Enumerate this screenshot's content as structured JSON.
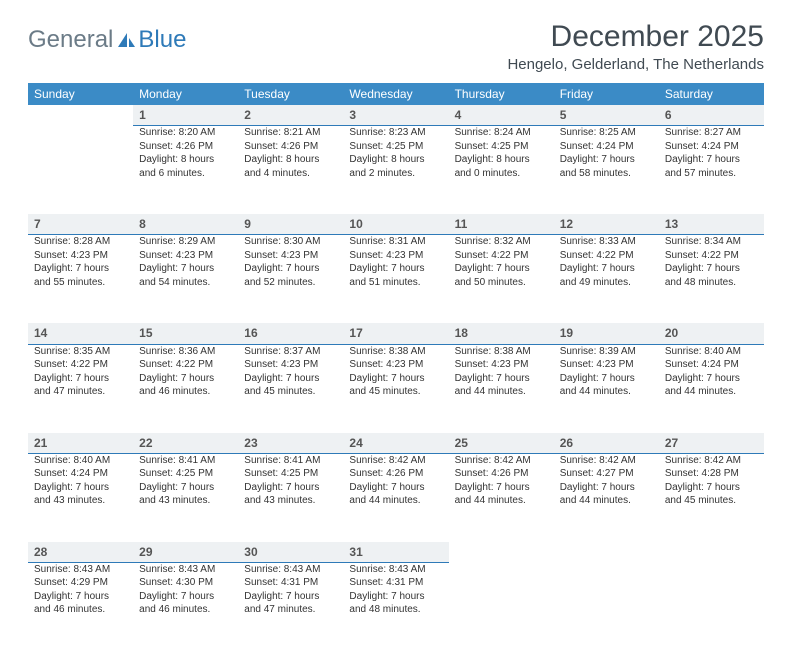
{
  "logo": {
    "general": "General",
    "blue": "Blue"
  },
  "title": "December 2025",
  "location": "Hengelo, Gelderland, The Netherlands",
  "colors": {
    "header_bg": "#3b8bc6",
    "header_text": "#ffffff",
    "daynum_bg": "#eef1f3",
    "daynum_border": "#2e7ab8",
    "logo_general": "#6b7b87",
    "logo_blue": "#2e7ab8",
    "title_color": "#404a52"
  },
  "dayHeaders": [
    "Sunday",
    "Monday",
    "Tuesday",
    "Wednesday",
    "Thursday",
    "Friday",
    "Saturday"
  ],
  "weeks": [
    {
      "nums": [
        "",
        "1",
        "2",
        "3",
        "4",
        "5",
        "6"
      ],
      "cells": [
        null,
        {
          "sunrise": "Sunrise: 8:20 AM",
          "sunset": "Sunset: 4:26 PM",
          "daylight": "Daylight: 8 hours and 6 minutes."
        },
        {
          "sunrise": "Sunrise: 8:21 AM",
          "sunset": "Sunset: 4:26 PM",
          "daylight": "Daylight: 8 hours and 4 minutes."
        },
        {
          "sunrise": "Sunrise: 8:23 AM",
          "sunset": "Sunset: 4:25 PM",
          "daylight": "Daylight: 8 hours and 2 minutes."
        },
        {
          "sunrise": "Sunrise: 8:24 AM",
          "sunset": "Sunset: 4:25 PM",
          "daylight": "Daylight: 8 hours and 0 minutes."
        },
        {
          "sunrise": "Sunrise: 8:25 AM",
          "sunset": "Sunset: 4:24 PM",
          "daylight": "Daylight: 7 hours and 58 minutes."
        },
        {
          "sunrise": "Sunrise: 8:27 AM",
          "sunset": "Sunset: 4:24 PM",
          "daylight": "Daylight: 7 hours and 57 minutes."
        }
      ]
    },
    {
      "nums": [
        "7",
        "8",
        "9",
        "10",
        "11",
        "12",
        "13"
      ],
      "cells": [
        {
          "sunrise": "Sunrise: 8:28 AM",
          "sunset": "Sunset: 4:23 PM",
          "daylight": "Daylight: 7 hours and 55 minutes."
        },
        {
          "sunrise": "Sunrise: 8:29 AM",
          "sunset": "Sunset: 4:23 PM",
          "daylight": "Daylight: 7 hours and 54 minutes."
        },
        {
          "sunrise": "Sunrise: 8:30 AM",
          "sunset": "Sunset: 4:23 PM",
          "daylight": "Daylight: 7 hours and 52 minutes."
        },
        {
          "sunrise": "Sunrise: 8:31 AM",
          "sunset": "Sunset: 4:23 PM",
          "daylight": "Daylight: 7 hours and 51 minutes."
        },
        {
          "sunrise": "Sunrise: 8:32 AM",
          "sunset": "Sunset: 4:22 PM",
          "daylight": "Daylight: 7 hours and 50 minutes."
        },
        {
          "sunrise": "Sunrise: 8:33 AM",
          "sunset": "Sunset: 4:22 PM",
          "daylight": "Daylight: 7 hours and 49 minutes."
        },
        {
          "sunrise": "Sunrise: 8:34 AM",
          "sunset": "Sunset: 4:22 PM",
          "daylight": "Daylight: 7 hours and 48 minutes."
        }
      ]
    },
    {
      "nums": [
        "14",
        "15",
        "16",
        "17",
        "18",
        "19",
        "20"
      ],
      "cells": [
        {
          "sunrise": "Sunrise: 8:35 AM",
          "sunset": "Sunset: 4:22 PM",
          "daylight": "Daylight: 7 hours and 47 minutes."
        },
        {
          "sunrise": "Sunrise: 8:36 AM",
          "sunset": "Sunset: 4:22 PM",
          "daylight": "Daylight: 7 hours and 46 minutes."
        },
        {
          "sunrise": "Sunrise: 8:37 AM",
          "sunset": "Sunset: 4:23 PM",
          "daylight": "Daylight: 7 hours and 45 minutes."
        },
        {
          "sunrise": "Sunrise: 8:38 AM",
          "sunset": "Sunset: 4:23 PM",
          "daylight": "Daylight: 7 hours and 45 minutes."
        },
        {
          "sunrise": "Sunrise: 8:38 AM",
          "sunset": "Sunset: 4:23 PM",
          "daylight": "Daylight: 7 hours and 44 minutes."
        },
        {
          "sunrise": "Sunrise: 8:39 AM",
          "sunset": "Sunset: 4:23 PM",
          "daylight": "Daylight: 7 hours and 44 minutes."
        },
        {
          "sunrise": "Sunrise: 8:40 AM",
          "sunset": "Sunset: 4:24 PM",
          "daylight": "Daylight: 7 hours and 44 minutes."
        }
      ]
    },
    {
      "nums": [
        "21",
        "22",
        "23",
        "24",
        "25",
        "26",
        "27"
      ],
      "cells": [
        {
          "sunrise": "Sunrise: 8:40 AM",
          "sunset": "Sunset: 4:24 PM",
          "daylight": "Daylight: 7 hours and 43 minutes."
        },
        {
          "sunrise": "Sunrise: 8:41 AM",
          "sunset": "Sunset: 4:25 PM",
          "daylight": "Daylight: 7 hours and 43 minutes."
        },
        {
          "sunrise": "Sunrise: 8:41 AM",
          "sunset": "Sunset: 4:25 PM",
          "daylight": "Daylight: 7 hours and 43 minutes."
        },
        {
          "sunrise": "Sunrise: 8:42 AM",
          "sunset": "Sunset: 4:26 PM",
          "daylight": "Daylight: 7 hours and 44 minutes."
        },
        {
          "sunrise": "Sunrise: 8:42 AM",
          "sunset": "Sunset: 4:26 PM",
          "daylight": "Daylight: 7 hours and 44 minutes."
        },
        {
          "sunrise": "Sunrise: 8:42 AM",
          "sunset": "Sunset: 4:27 PM",
          "daylight": "Daylight: 7 hours and 44 minutes."
        },
        {
          "sunrise": "Sunrise: 8:42 AM",
          "sunset": "Sunset: 4:28 PM",
          "daylight": "Daylight: 7 hours and 45 minutes."
        }
      ]
    },
    {
      "nums": [
        "28",
        "29",
        "30",
        "31",
        "",
        "",
        ""
      ],
      "cells": [
        {
          "sunrise": "Sunrise: 8:43 AM",
          "sunset": "Sunset: 4:29 PM",
          "daylight": "Daylight: 7 hours and 46 minutes."
        },
        {
          "sunrise": "Sunrise: 8:43 AM",
          "sunset": "Sunset: 4:30 PM",
          "daylight": "Daylight: 7 hours and 46 minutes."
        },
        {
          "sunrise": "Sunrise: 8:43 AM",
          "sunset": "Sunset: 4:31 PM",
          "daylight": "Daylight: 7 hours and 47 minutes."
        },
        {
          "sunrise": "Sunrise: 8:43 AM",
          "sunset": "Sunset: 4:31 PM",
          "daylight": "Daylight: 7 hours and 48 minutes."
        },
        null,
        null,
        null
      ]
    }
  ]
}
